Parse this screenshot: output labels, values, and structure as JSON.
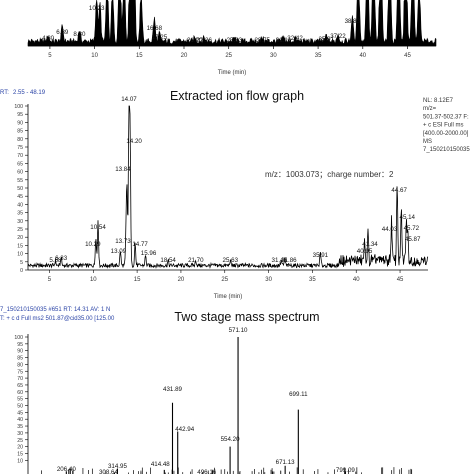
{
  "panel1": {
    "xlabel": "Time (min)",
    "xticks": [
      "5",
      "10",
      "15",
      "20",
      "25",
      "30",
      "35",
      "40",
      "45"
    ],
    "peak_labels": [
      "4.80",
      "6.39",
      "8.30",
      "10.23",
      "16.68",
      "17.25",
      "21.20",
      "22.26",
      "25.63",
      "28.75",
      "31.11",
      "32.42",
      "35.91",
      "37.22",
      "38.83"
    ]
  },
  "panel2": {
    "rt_prefix": "RT:",
    "rt_range": "2.55 - 48.19",
    "title": "Extracted ion flow graph",
    "info_lines": [
      "NL: 8.12E7",
      "m/z=",
      "501.37-502.37 F:",
      "+ c ESI Full ms",
      "[400.00-2000.00]",
      "MS",
      "7_150210150035"
    ],
    "annotation": "m/z：1003.073；charge number：2",
    "xlabel": "Time (min)",
    "yticks": [
      "100",
      "95",
      "90",
      "85",
      "80",
      "75",
      "70",
      "65",
      "60",
      "55",
      "50",
      "45",
      "40",
      "35",
      "30",
      "25",
      "20",
      "15",
      "10",
      "5",
      "0"
    ],
    "xticks": [
      "5",
      "10",
      "15",
      "20",
      "25",
      "30",
      "35",
      "40",
      "45"
    ],
    "peak_labels": [
      "5.68",
      "6.33",
      "10.29",
      "10.54",
      "13.09",
      "13.73",
      "13.84",
      "14.07",
      "14.20",
      "14.77",
      "15.96",
      "18.54",
      "21.70",
      "25.63",
      "31.45",
      "31.86",
      "35.91",
      "40.95",
      "41.34",
      "44.03",
      "44.67",
      "45.14",
      "45.72",
      "45.87"
    ]
  },
  "panel3": {
    "header1": "7_150210150035 #651  RT: 14.31  AV: 1  N",
    "header2": "T: + c d Full ms2 501.87@cid35.00 [125.00",
    "title": "Two stage mass spectrum",
    "yticks": [
      "100",
      "95",
      "90",
      "85",
      "80",
      "75",
      "70",
      "65",
      "60",
      "55",
      "50",
      "45",
      "40",
      "35",
      "30",
      "25",
      "20",
      "15",
      "10"
    ],
    "peak_labels": [
      "206.40",
      "314.95",
      "308.64",
      "414.48",
      "431.89",
      "442.94",
      "496.16",
      "554.20",
      "571.10",
      "671.13",
      "699.11",
      "799.09"
    ]
  },
  "chart_data": [
    {
      "type": "line",
      "title": "",
      "xlabel": "Time (min)",
      "xlim": [
        2.55,
        48.19
      ],
      "x": [
        4.8,
        6.39,
        8.3,
        10.23,
        16.68,
        17.25,
        21.2,
        22.26,
        25.63,
        28.75,
        31.11,
        32.42,
        35.91,
        37.22,
        38.83
      ],
      "series": [
        {
          "values": [
            3,
            8,
            6,
            24,
            12,
            4,
            2,
            2,
            2,
            2,
            2,
            2,
            3,
            4,
            14
          ]
        }
      ]
    },
    {
      "type": "line",
      "title": "Extracted ion flow graph",
      "xlabel": "Time (min)",
      "xlim": [
        2.55,
        48.19
      ],
      "ylim": [
        0,
        100
      ],
      "x": [
        5.68,
        6.33,
        10.29,
        10.54,
        13.09,
        13.73,
        13.84,
        14.07,
        14.2,
        14.77,
        15.96,
        18.54,
        21.7,
        25.63,
        31.45,
        31.86,
        35.91,
        40.95,
        41.34,
        44.03,
        44.67,
        45.14,
        45.72,
        45.87
      ],
      "series": [
        {
          "values": [
            3,
            5,
            18,
            28,
            9,
            17,
            46,
            100,
            77,
            14,
            6,
            3,
            3,
            3,
            3,
            4,
            8,
            10,
            16,
            25,
            47,
            31,
            22,
            17
          ]
        }
      ]
    },
    {
      "type": "bar",
      "title": "Two stage mass spectrum",
      "ylim": [
        0,
        100
      ],
      "x": [
        206.4,
        308.64,
        314.95,
        414.48,
        431.89,
        442.94,
        496.16,
        554.2,
        571.1,
        671.13,
        699.11,
        799.09
      ],
      "series": [
        {
          "values": [
            2,
            1,
            4,
            3,
            52,
            31,
            1,
            20,
            100,
            6,
            47,
            2
          ]
        }
      ]
    }
  ]
}
